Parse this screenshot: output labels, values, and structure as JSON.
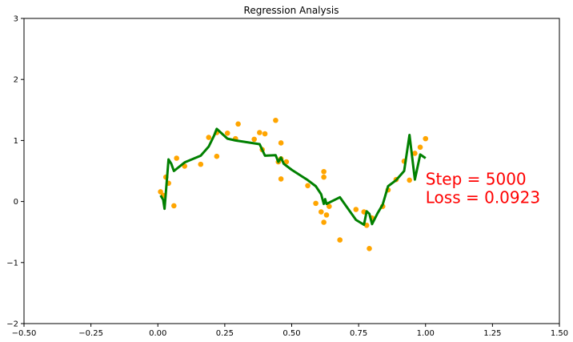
{
  "chart_data": {
    "type": "scatter",
    "title": "Regression Analysis",
    "xlabel": "",
    "ylabel": "",
    "xlim": [
      -0.5,
      1.5
    ],
    "ylim": [
      -2,
      3
    ],
    "x_ticks": [
      -0.5,
      -0.25,
      0.0,
      0.25,
      0.5,
      0.75,
      1.0,
      1.25,
      1.5
    ],
    "x_tick_labels": [
      "−0.50",
      "−0.25",
      "0.00",
      "0.25",
      "0.50",
      "0.75",
      "1.00",
      "1.25",
      "1.50"
    ],
    "y_ticks": [
      -2,
      -1,
      0,
      1,
      2,
      3
    ],
    "y_tick_labels": [
      "−2",
      "−1",
      "0",
      "1",
      "2",
      "3"
    ],
    "grid": false,
    "scatter_color": "#ffa500",
    "line_color": "#008000",
    "scatter": {
      "x": [
        0.01,
        0.02,
        0.03,
        0.04,
        0.06,
        0.07,
        0.1,
        0.16,
        0.19,
        0.22,
        0.22,
        0.26,
        0.29,
        0.3,
        0.36,
        0.38,
        0.39,
        0.4,
        0.44,
        0.45,
        0.46,
        0.46,
        0.46,
        0.48,
        0.56,
        0.59,
        0.61,
        0.62,
        0.62,
        0.62,
        0.63,
        0.64,
        0.68,
        0.74,
        0.77,
        0.78,
        0.79,
        0.8,
        0.84,
        0.86,
        0.89,
        0.92,
        0.94,
        0.96,
        0.98,
        1.0
      ],
      "y": [
        0.16,
        0.1,
        0.4,
        0.3,
        -0.07,
        0.71,
        0.58,
        0.61,
        1.05,
        0.74,
        1.13,
        1.12,
        1.03,
        1.27,
        1.02,
        1.13,
        0.85,
        1.11,
        1.33,
        0.65,
        0.96,
        0.7,
        0.37,
        0.65,
        0.26,
        -0.03,
        -0.17,
        0.49,
        0.4,
        -0.34,
        -0.22,
        -0.08,
        -0.63,
        -0.13,
        -0.17,
        -0.39,
        -0.77,
        -0.27,
        -0.08,
        0.19,
        0.36,
        0.66,
        0.35,
        0.79,
        0.89,
        1.03
      ]
    },
    "line": {
      "x": [
        0.01,
        0.02,
        0.025,
        0.04,
        0.05,
        0.06,
        0.1,
        0.16,
        0.19,
        0.21,
        0.22,
        0.26,
        0.29,
        0.38,
        0.4,
        0.44,
        0.45,
        0.46,
        0.47,
        0.5,
        0.56,
        0.59,
        0.61,
        0.62,
        0.625,
        0.63,
        0.68,
        0.74,
        0.77,
        0.78,
        0.79,
        0.8,
        0.82,
        0.84,
        0.86,
        0.89,
        0.92,
        0.94,
        0.96,
        0.98,
        1.0
      ],
      "y": [
        0.1,
        0.03,
        -0.12,
        0.69,
        0.62,
        0.5,
        0.64,
        0.75,
        0.9,
        1.08,
        1.19,
        1.03,
        1.0,
        0.94,
        0.75,
        0.76,
        0.65,
        0.72,
        0.62,
        0.52,
        0.35,
        0.25,
        0.12,
        -0.04,
        0.04,
        -0.04,
        0.07,
        -0.3,
        -0.38,
        -0.16,
        -0.2,
        -0.37,
        -0.2,
        -0.05,
        0.25,
        0.35,
        0.5,
        1.09,
        0.36,
        0.77,
        0.71
      ]
    },
    "annotation": {
      "lines": [
        "Step = 5000",
        "Loss = 0.0923"
      ],
      "color": "#ff0000",
      "anchor_x": 1.0,
      "anchor_y": 0.0
    }
  }
}
